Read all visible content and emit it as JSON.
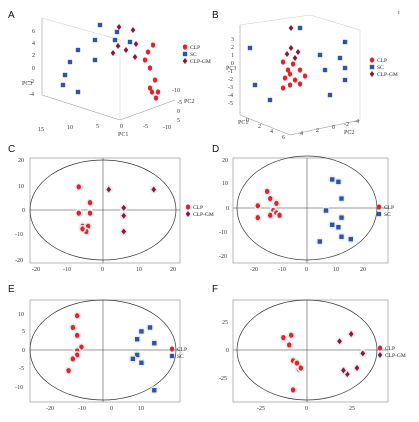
{
  "colors": {
    "CLP": "#e8202a",
    "SC": "#2c54a8",
    "CLP-GM": "#8b1a3a"
  },
  "chart_data": [
    {
      "panel": "A",
      "type": "scatter",
      "axes3d": {
        "z_ticks": [
          "6",
          "4",
          "2",
          "0",
          "-2",
          "-4"
        ],
        "x_ticks": [
          "15",
          "10",
          "5",
          "0",
          "-5",
          "-10"
        ],
        "y_ticks": [
          "-10",
          "-5",
          "0",
          "5"
        ],
        "z_label": "PC3",
        "x_label": "PC1",
        "y_label": "PC2"
      },
      "legend": [
        "CLP",
        "SC",
        "CLP-GM"
      ],
      "series": [
        {
          "group": "CLP",
          "marker": "circle",
          "pts": [
            [
              153,
              45
            ],
            [
              148,
              52
            ],
            [
              145,
              60
            ],
            [
              150,
              68
            ],
            [
              155,
              80
            ],
            [
              150,
              88
            ],
            [
              158,
              92
            ],
            [
              156,
              98
            ],
            [
              152,
              92
            ]
          ]
        },
        {
          "group": "SC",
          "marker": "square",
          "pts": [
            [
              100,
              25
            ],
            [
              95,
              40
            ],
            [
              78,
              50
            ],
            [
              70,
              62
            ],
            [
              65,
              75
            ],
            [
              63,
              85
            ],
            [
              78,
              92
            ],
            [
              95,
              60
            ],
            [
              115,
              40
            ],
            [
              130,
              42
            ],
            [
              117,
              32
            ]
          ]
        },
        {
          "group": "CLP-GM",
          "marker": "diamond",
          "pts": [
            [
              119,
              27
            ],
            [
              133,
              30
            ],
            [
              136,
              44
            ],
            [
              118,
              46
            ],
            [
              126,
              50
            ],
            [
              113,
              53
            ],
            [
              135,
              57
            ]
          ]
        }
      ]
    },
    {
      "panel": "B",
      "type": "scatter",
      "axes3d": {
        "z_ticks": [
          "3",
          "2",
          "1",
          "0",
          "-1",
          "-2",
          "-3",
          "-4",
          "-5"
        ],
        "x_ticks": [
          "0",
          "2",
          "4",
          "6"
        ],
        "y_ticks": [
          "4",
          "2",
          "0",
          "-2",
          "-4"
        ],
        "z_label": "PC3",
        "x_label": "PC1",
        "y_label": "PC2"
      },
      "legend": [
        "CLP",
        "SC",
        "CLP-GM"
      ],
      "series": [
        {
          "group": "CLP",
          "marker": "circle",
          "pts": [
            [
              283,
              62
            ],
            [
              293,
              64
            ],
            [
              300,
              70
            ],
            [
              290,
              74
            ],
            [
              285,
              78
            ],
            [
              295,
              80
            ],
            [
              290,
              85
            ],
            [
              283,
              88
            ],
            [
              300,
              84
            ],
            [
              305,
              76
            ],
            [
              288,
              70
            ]
          ]
        },
        {
          "group": "SC",
          "marker": "square",
          "pts": [
            [
              250,
              48
            ],
            [
              255,
              85
            ],
            [
              300,
              28
            ],
            [
              320,
              55
            ],
            [
              345,
              42
            ],
            [
              345,
              68
            ],
            [
              345,
              80
            ],
            [
              330,
              95
            ],
            [
              325,
              70
            ],
            [
              270,
              100
            ],
            [
              340,
              58
            ]
          ]
        },
        {
          "group": "CLP-GM",
          "marker": "diamond",
          "pts": [
            [
              291,
              28
            ],
            [
              291,
              48
            ],
            [
              287,
              54
            ],
            [
              298,
              52
            ],
            [
              295,
              58
            ]
          ]
        }
      ]
    },
    {
      "panel": "C",
      "type": "scatter",
      "x_ticks": [
        "-20",
        "-10",
        "0",
        "10",
        "20"
      ],
      "y_ticks": [
        "20",
        "10",
        "0",
        "-10",
        "-20"
      ],
      "xlim": [
        -20,
        20
      ],
      "ylim": [
        -20,
        20
      ],
      "legend": [
        "CLP",
        "CLP-GM"
      ],
      "series": [
        {
          "group": "CLP",
          "marker": "circle",
          "pts": [
            [
              -7,
              9
            ],
            [
              -4,
              3
            ],
            [
              -7,
              -1
            ],
            [
              -4,
              -1
            ],
            [
              -6,
              -6
            ],
            [
              -4.5,
              -6
            ],
            [
              -5,
              -8
            ],
            [
              -6,
              -7
            ]
          ]
        },
        {
          "group": "CLP-GM",
          "marker": "diamond",
          "pts": [
            [
              1,
              8
            ],
            [
              13,
              8
            ],
            [
              5,
              1
            ],
            [
              5,
              -2
            ],
            [
              5,
              -8
            ]
          ]
        }
      ]
    },
    {
      "panel": "D",
      "type": "scatter",
      "x_ticks": [
        "-20",
        "-10",
        "0",
        "10",
        "20"
      ],
      "y_ticks": [
        "20",
        "10",
        "0",
        "-10",
        "-20"
      ],
      "xlim": [
        -25,
        25
      ],
      "ylim": [
        -22,
        22
      ],
      "legend": [
        "CLP",
        "SC"
      ],
      "series": [
        {
          "group": "CLP",
          "marker": "circle",
          "pts": [
            [
              -14,
              8
            ],
            [
              -13,
              5
            ],
            [
              -11,
              3
            ],
            [
              -17,
              2
            ],
            [
              -12,
              0
            ],
            [
              -11,
              -1
            ],
            [
              -13,
              -2
            ],
            [
              -10,
              -2
            ],
            [
              -17,
              -3
            ]
          ]
        },
        {
          "group": "SC",
          "marker": "square",
          "pts": [
            [
              7,
              13
            ],
            [
              9,
              12
            ],
            [
              10,
              5
            ],
            [
              5,
              0
            ],
            [
              10,
              -3
            ],
            [
              7,
              -6
            ],
            [
              10,
              -11
            ],
            [
              13,
              -12
            ],
            [
              3,
              -13
            ],
            [
              9,
              -7
            ]
          ]
        }
      ]
    },
    {
      "panel": "E",
      "type": "scatter",
      "x_ticks": [
        "-20",
        "-10",
        "0",
        "10"
      ],
      "y_ticks": [
        "10",
        "5",
        "0",
        "-5",
        "-10"
      ],
      "xlim": [
        -20,
        15
      ],
      "ylim": [
        -13,
        13
      ],
      "legend": [
        "CLP",
        "SC"
      ],
      "series": [
        {
          "group": "CLP",
          "marker": "circle",
          "pts": [
            [
              -9,
              9
            ],
            [
              -10,
              6
            ],
            [
              -9,
              4
            ],
            [
              -8,
              1
            ],
            [
              -9,
              0
            ],
            [
              -9,
              -1
            ],
            [
              -10,
              -2
            ],
            [
              -11,
              -5
            ]
          ]
        },
        {
          "group": "SC",
          "marker": "square",
          "pts": [
            [
              8,
              6
            ],
            [
              6,
              5
            ],
            [
              5,
              3
            ],
            [
              9,
              2
            ],
            [
              5,
              -1
            ],
            [
              4,
              -2
            ],
            [
              6,
              -3
            ],
            [
              9,
              -10
            ]
          ]
        }
      ]
    },
    {
      "panel": "F",
      "type": "scatter",
      "x_ticks": [
        "-25",
        "0",
        "25"
      ],
      "y_ticks": [
        "25",
        "0",
        "-25"
      ],
      "xlim": [
        -40,
        40
      ],
      "ylim": [
        -42,
        42
      ],
      "legend": [
        "CLP",
        "CLP-GM"
      ],
      "series": [
        {
          "group": "CLP",
          "marker": "circle",
          "pts": [
            [
              -14,
              11
            ],
            [
              -10,
              13
            ],
            [
              -11,
              5
            ],
            [
              -9,
              -8
            ],
            [
              -7,
              -10
            ],
            [
              -6,
              -15
            ],
            [
              -9,
              -32
            ],
            [
              -5,
              -14
            ]
          ]
        },
        {
          "group": "CLP-GM",
          "marker": "diamond",
          "pts": [
            [
              21,
              14
            ],
            [
              15,
              8
            ],
            [
              27,
              -2
            ],
            [
              24,
              -14
            ],
            [
              19,
              -19
            ],
            [
              17,
              -16
            ]
          ]
        }
      ]
    }
  ]
}
